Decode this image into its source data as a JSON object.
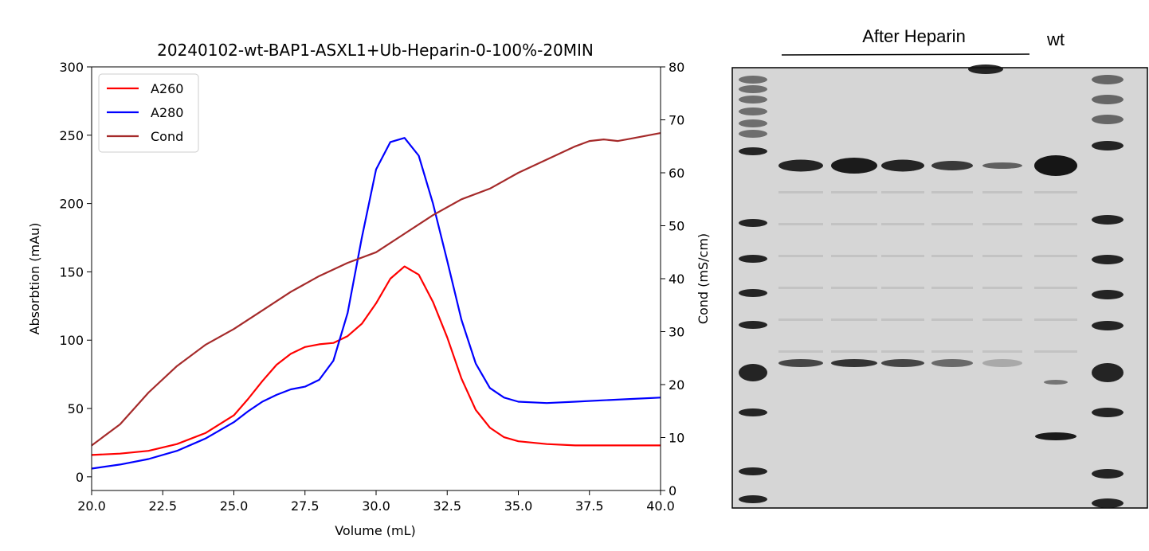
{
  "chart_data": {
    "type": "line",
    "title": "20240102-wt-BAP1-ASXL1+Ub-Heparin-0-100%-20MIN",
    "xlabel": "Volume (mL)",
    "ylabel": "Absorbtion (mAu)",
    "y2label": "Cond (mS/cm)",
    "xlim": [
      20,
      40
    ],
    "ylim": [
      -10,
      300
    ],
    "y2lim": [
      0,
      80
    ],
    "xticks": [
      20.0,
      22.5,
      25.0,
      27.5,
      30.0,
      32.5,
      35.0,
      37.5,
      40.0
    ],
    "xtick_labels": [
      "20.0",
      "22.5",
      "25.0",
      "27.5",
      "30.0",
      "32.5",
      "35.0",
      "37.5",
      "40.0"
    ],
    "yticks": [
      0,
      50,
      100,
      150,
      200,
      250,
      300
    ],
    "ytick_labels": [
      "0",
      "50",
      "100",
      "150",
      "200",
      "250",
      "300"
    ],
    "y2ticks": [
      0,
      10,
      20,
      30,
      40,
      50,
      60,
      70,
      80
    ],
    "y2tick_labels": [
      "0",
      "10",
      "20",
      "30",
      "40",
      "50",
      "60",
      "70",
      "80"
    ],
    "grid": false,
    "legend_position": "top-left",
    "series": [
      {
        "name": "A260",
        "color": "#ff0000",
        "axis": "left",
        "x": [
          20,
          21,
          22,
          23,
          24,
          25,
          25.5,
          26,
          26.5,
          27,
          27.5,
          28,
          28.5,
          29,
          29.5,
          30,
          30.5,
          31,
          31.5,
          32,
          32.5,
          33,
          33.5,
          34,
          34.5,
          35,
          36,
          37,
          38,
          39,
          40
        ],
        "y": [
          16,
          17,
          19,
          24,
          32,
          45,
          57,
          70,
          82,
          90,
          95,
          97,
          98,
          103,
          112,
          127,
          145,
          154,
          148,
          128,
          102,
          72,
          49,
          36,
          29,
          26,
          24,
          23,
          23,
          23,
          23
        ]
      },
      {
        "name": "A280",
        "color": "#0000ff",
        "axis": "left",
        "x": [
          20,
          21,
          22,
          23,
          24,
          25,
          25.5,
          26,
          26.5,
          27,
          27.5,
          28,
          28.5,
          29,
          29.5,
          30,
          30.5,
          31,
          31.5,
          32,
          32.5,
          33,
          33.5,
          34,
          34.5,
          35,
          36,
          37,
          38,
          39,
          40
        ],
        "y": [
          6,
          9,
          13,
          19,
          28,
          40,
          48,
          55,
          60,
          64,
          66,
          71,
          85,
          120,
          175,
          225,
          245,
          248,
          235,
          200,
          158,
          115,
          83,
          65,
          58,
          55,
          54,
          55,
          56,
          57,
          58
        ]
      },
      {
        "name": "Cond",
        "color": "#a52a2a",
        "axis": "right",
        "x": [
          20,
          21,
          22,
          23,
          24,
          25,
          26,
          27,
          28,
          29,
          30,
          31,
          32,
          33,
          34,
          35,
          36,
          37,
          37.5,
          38,
          38.5,
          39,
          39.5,
          40
        ],
        "y": [
          8.5,
          12.5,
          18.5,
          23.5,
          27.5,
          30.5,
          34,
          37.5,
          40.5,
          43,
          45,
          48.5,
          52,
          55,
          57,
          60,
          62.5,
          65,
          66,
          66.3,
          66,
          66.5,
          67,
          67.5
        ]
      }
    ]
  },
  "gel": {
    "header_label": "After Heparin",
    "lane_label": "wt"
  }
}
